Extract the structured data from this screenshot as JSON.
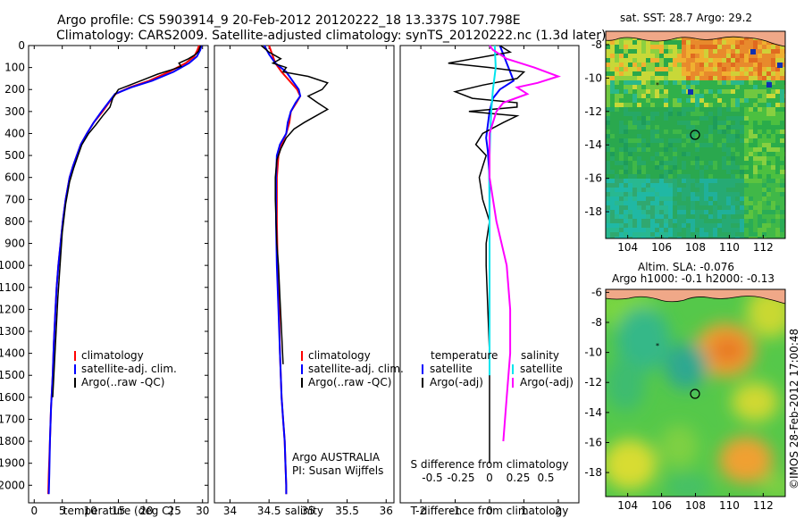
{
  "header": {
    "line1": "Argo profile: CS 5903914_9 20-Feb-2012 20120222_18 13.337S 107.798E",
    "line2": "Climatology: CARS2009. Satellite-adjusted climatology: synTS_20120222.nc (1.3d later)"
  },
  "side_note": "©IMOS 28-Feb-2012 17:00:48",
  "colors": {
    "climatology": "#ff0000",
    "satellite": "#0000ff",
    "argo": "#000000",
    "salinity_satellite": "#00e5ee",
    "salinity_argo": "#ff00ff"
  },
  "chart_data": [
    {
      "type": "line",
      "panel": "temperature",
      "xlabel": "temperature (deg C)",
      "ylabel": "",
      "xlim": [
        -1,
        31
      ],
      "ylim": [
        2080,
        0
      ],
      "xticks": [
        0,
        5,
        10,
        15,
        20,
        25,
        30
      ],
      "yticks": [
        0,
        100,
        200,
        300,
        400,
        500,
        600,
        700,
        800,
        900,
        1000,
        1100,
        1200,
        1300,
        1400,
        1500,
        1600,
        1700,
        1800,
        1900,
        2000
      ],
      "legend": [
        "climatology",
        "satellite-adj. clim.",
        "Argo(..raw -QC)"
      ],
      "legend_position": "lower-left",
      "series": [
        {
          "name": "climatology",
          "color": "#ff0000",
          "x": [
            29.4,
            29.1,
            28.5,
            27.0,
            24.0,
            20.5,
            17.0,
            14.5,
            13.3,
            12.2,
            10.6,
            9.4,
            8.3,
            7.6,
            6.9,
            6.3,
            5.6,
            5.1,
            4.7,
            4.3,
            4.0,
            3.8,
            3.5,
            3.3,
            3.0,
            2.8,
            2.6,
            2.5
          ],
          "y": [
            0,
            20,
            50,
            80,
            120,
            160,
            190,
            220,
            260,
            300,
            350,
            400,
            450,
            500,
            550,
            600,
            700,
            800,
            900,
            1000,
            1100,
            1200,
            1350,
            1500,
            1650,
            1800,
            1950,
            2040
          ]
        },
        {
          "name": "satellite-adj. clim.",
          "color": "#0000ff",
          "x": [
            29.8,
            29.6,
            29.0,
            27.6,
            24.8,
            21.0,
            17.3,
            14.4,
            13.2,
            12.0,
            10.6,
            9.4,
            8.3,
            7.6,
            6.9,
            6.3,
            5.6,
            5.1,
            4.7,
            4.3,
            4.0,
            3.8,
            3.5,
            3.3,
            3.0,
            2.8,
            2.7,
            2.6
          ],
          "y": [
            0,
            20,
            50,
            80,
            120,
            160,
            190,
            220,
            260,
            300,
            350,
            400,
            450,
            500,
            550,
            600,
            700,
            800,
            900,
            1000,
            1100,
            1200,
            1350,
            1500,
            1650,
            1800,
            1950,
            2040
          ]
        },
        {
          "name": "Argo(..raw -QC)",
          "color": "#000000",
          "x": [
            29.7,
            29.5,
            29.3,
            28.8,
            27.5,
            25.8,
            26.2,
            24.5,
            22.0,
            19.5,
            17.0,
            15.0,
            14.0,
            13.5,
            12.2,
            11.0,
            9.7,
            8.5,
            7.8,
            7.0,
            6.3,
            5.6,
            5.0,
            4.6,
            4.2,
            3.9,
            3.6,
            3.3
          ],
          "y": [
            0,
            10,
            25,
            40,
            60,
            80,
            95,
            110,
            130,
            155,
            180,
            200,
            240,
            280,
            320,
            360,
            400,
            450,
            500,
            560,
            620,
            720,
            850,
            1000,
            1150,
            1300,
            1450,
            1600
          ]
        }
      ]
    },
    {
      "type": "line",
      "panel": "salinity",
      "xlabel": "salinity",
      "xlim": [
        33.8,
        36.1
      ],
      "ylim": [
        2080,
        0
      ],
      "xticks": [
        "34",
        "34.5",
        "35",
        "35.5",
        "36"
      ],
      "legend": [
        "climatology",
        "satellite-adj. clim.",
        "Argo(..raw -QC)"
      ],
      "legend_position": "lower-right",
      "annotation_lines": [
        "Argo AUSTRALIA",
        "PI: Susan Wijffels"
      ],
      "series": [
        {
          "name": "climatology",
          "color": "#ff0000",
          "x": [
            34.5,
            34.54,
            34.58,
            34.66,
            34.76,
            34.86,
            34.9,
            34.85,
            34.78,
            34.76,
            34.72,
            34.66,
            34.62,
            34.6,
            34.6,
            34.61,
            34.63,
            34.64,
            34.66,
            34.68,
            34.7,
            34.71,
            34.72,
            34.72
          ],
          "y": [
            0,
            40,
            80,
            120,
            160,
            200,
            230,
            260,
            300,
            350,
            400,
            450,
            500,
            600,
            800,
            1000,
            1200,
            1400,
            1600,
            1700,
            1800,
            1900,
            2000,
            2040
          ]
        },
        {
          "name": "satellite-adj. clim.",
          "color": "#0000ff",
          "x": [
            34.44,
            34.5,
            34.58,
            34.72,
            34.8,
            34.88,
            34.9,
            34.84,
            34.78,
            34.74,
            34.72,
            34.64,
            34.6,
            34.59,
            34.59,
            34.6,
            34.62,
            34.64,
            34.66,
            34.68,
            34.7,
            34.71,
            34.72,
            34.72
          ],
          "y": [
            0,
            40,
            80,
            120,
            160,
            200,
            230,
            260,
            300,
            350,
            400,
            450,
            500,
            600,
            800,
            1000,
            1200,
            1400,
            1600,
            1700,
            1800,
            1900,
            2000,
            2040
          ]
        },
        {
          "name": "Argo(..raw -QC)",
          "color": "#000000",
          "x": [
            34.4,
            34.5,
            34.65,
            34.55,
            34.72,
            34.68,
            35.0,
            35.25,
            35.18,
            35.0,
            35.12,
            35.25,
            35.1,
            34.95,
            34.82,
            34.72,
            34.65,
            34.6,
            34.58,
            34.58,
            34.59,
            34.6,
            34.62,
            34.64,
            34.66,
            34.68
          ],
          "y": [
            0,
            30,
            60,
            80,
            100,
            120,
            140,
            170,
            200,
            230,
            260,
            290,
            320,
            350,
            380,
            420,
            470,
            520,
            600,
            700,
            800,
            900,
            1000,
            1150,
            1300,
            1450
          ]
        }
      ]
    },
    {
      "type": "line",
      "panel": "difference",
      "xlabel": "T difference from climatology",
      "xlabel_top": "S difference from climatology",
      "xlim": [
        -2.6,
        2.6
      ],
      "ylim": [
        2080,
        0
      ],
      "xticks": [
        "-2",
        "-1",
        "0",
        "1",
        "2"
      ],
      "xticks_top": [
        "-0.5",
        "-0.25",
        "0",
        "0.25",
        "0.5"
      ],
      "legend": {
        "temperature_title": "temperature",
        "salinity_title": "salinity",
        "temperature_items": [
          "satellite",
          "Argo(-adj)"
        ],
        "salinity_items": [
          "satellite",
          "Argo(-adj)"
        ]
      },
      "legend_position": "lower-center",
      "series": [
        {
          "name": "temperature satellite",
          "color": "#0000ff",
          "x": [
            0.3,
            0.4,
            0.5,
            0.6,
            0.7,
            0.3,
            0.1,
            0.0,
            -0.05,
            -0.1,
            -0.05,
            0.0,
            0.0,
            0.0,
            0.0
          ],
          "y": [
            0,
            40,
            80,
            120,
            160,
            200,
            240,
            300,
            360,
            420,
            480,
            600,
            800,
            1000,
            1500
          ]
        },
        {
          "name": "temperature Argo(-adj)",
          "color": "#000000",
          "x": [
            0.3,
            0.6,
            -1.2,
            0.0,
            1.0,
            0.8,
            -0.2,
            -1.0,
            -0.5,
            0.8,
            0.8,
            -0.6,
            0.8,
            0.4,
            -0.2,
            -0.4,
            -0.1,
            -0.2,
            -0.3,
            -0.2,
            0.0,
            -0.1,
            -0.1,
            0.0,
            0.0
          ],
          "y": [
            0,
            30,
            80,
            100,
            120,
            150,
            180,
            210,
            240,
            260,
            280,
            300,
            320,
            350,
            400,
            450,
            500,
            550,
            600,
            700,
            800,
            900,
            1000,
            1400,
            1900
          ]
        },
        {
          "name": "salinity satellite",
          "color": "#00e5ee",
          "x": [
            0.15,
            0.18,
            0.1,
            0.05,
            0.02,
            0.0,
            -0.01,
            0.0,
            0.0,
            0.0
          ],
          "y": [
            0,
            100,
            200,
            300,
            400,
            500,
            600,
            800,
            1000,
            1500
          ]
        },
        {
          "name": "salinity Argo(-adj)",
          "color": "#ff00ff",
          "x": [
            0.0,
            0.1,
            0.3,
            0.5,
            0.9,
            1.3,
            2.0,
            1.4,
            0.8,
            1.1,
            0.4,
            0.2,
            0.1,
            0.0,
            0.0,
            0.0,
            0.2,
            0.5,
            0.6,
            0.6,
            0.5,
            0.4
          ],
          "y": [
            0,
            20,
            40,
            60,
            80,
            100,
            140,
            170,
            190,
            220,
            260,
            300,
            350,
            400,
            500,
            600,
            800,
            1000,
            1200,
            1400,
            1600,
            1800
          ]
        }
      ]
    },
    {
      "type": "heatmap",
      "panel": "sst-map",
      "title": "sat. SST: 28.7  Argo: 29.2",
      "xlim": [
        102.7,
        113.3
      ],
      "ylim": [
        -19.6,
        -7.2
      ],
      "xticks": [
        "104",
        "106",
        "108",
        "110",
        "112"
      ],
      "yticks": [
        "-8",
        "-10",
        "-12",
        "-14",
        "-16",
        "-18"
      ],
      "profile_location": {
        "lon": 107.798,
        "lat": -13.337
      }
    },
    {
      "type": "heatmap",
      "panel": "sla-map",
      "title_lines": [
        "Altim. SLA: -0.076",
        "Argo h1000: -0.1 h2000: -0.13"
      ],
      "xlim": [
        102.7,
        113.3
      ],
      "ylim": [
        -19.6,
        -5.8
      ],
      "xticks": [
        "104",
        "106",
        "108",
        "110",
        "112"
      ],
      "yticks": [
        "-6",
        "-8",
        "-10",
        "-12",
        "-14",
        "-16",
        "-18"
      ],
      "profile_location": {
        "lon": 107.798,
        "lat": -13.337
      }
    }
  ]
}
